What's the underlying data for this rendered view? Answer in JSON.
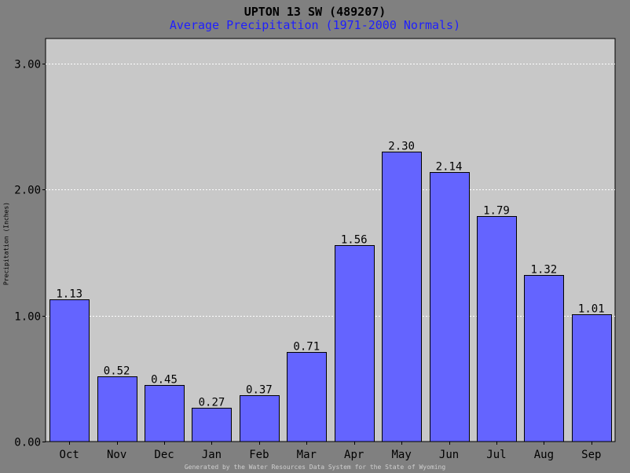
{
  "chart_data": {
    "type": "bar",
    "title": "UPTON 13 SW (489207)",
    "subtitle": "Average Precipitation (1971-2000 Normals)",
    "ylabel": "Precipitation (Inches)",
    "xlabel": "",
    "categories": [
      "Oct",
      "Nov",
      "Dec",
      "Jan",
      "Feb",
      "Mar",
      "Apr",
      "May",
      "Jun",
      "Jul",
      "Aug",
      "Sep"
    ],
    "values": [
      1.13,
      0.52,
      0.45,
      0.27,
      0.37,
      0.71,
      1.56,
      2.3,
      2.14,
      1.79,
      1.32,
      1.01
    ],
    "data_labels": [
      "1.13",
      "0.52",
      "0.45",
      "0.27",
      "0.37",
      "0.71",
      "1.56",
      "2.30",
      "2.14",
      "1.79",
      "1.32",
      "1.01"
    ],
    "ylim": [
      0,
      3.0
    ],
    "yticks": [
      0,
      1,
      2,
      3
    ],
    "ytick_labels": [
      "0.00",
      "1.00",
      "2.00",
      "3.00"
    ],
    "grid": true,
    "bar_color": "#6464ff",
    "plot_background": "#c8c8c8",
    "page_background": "#808080",
    "subtitle_color": "#1f1fff"
  },
  "footer": "Generated by the Water Resources Data System for the State of Wyoming"
}
